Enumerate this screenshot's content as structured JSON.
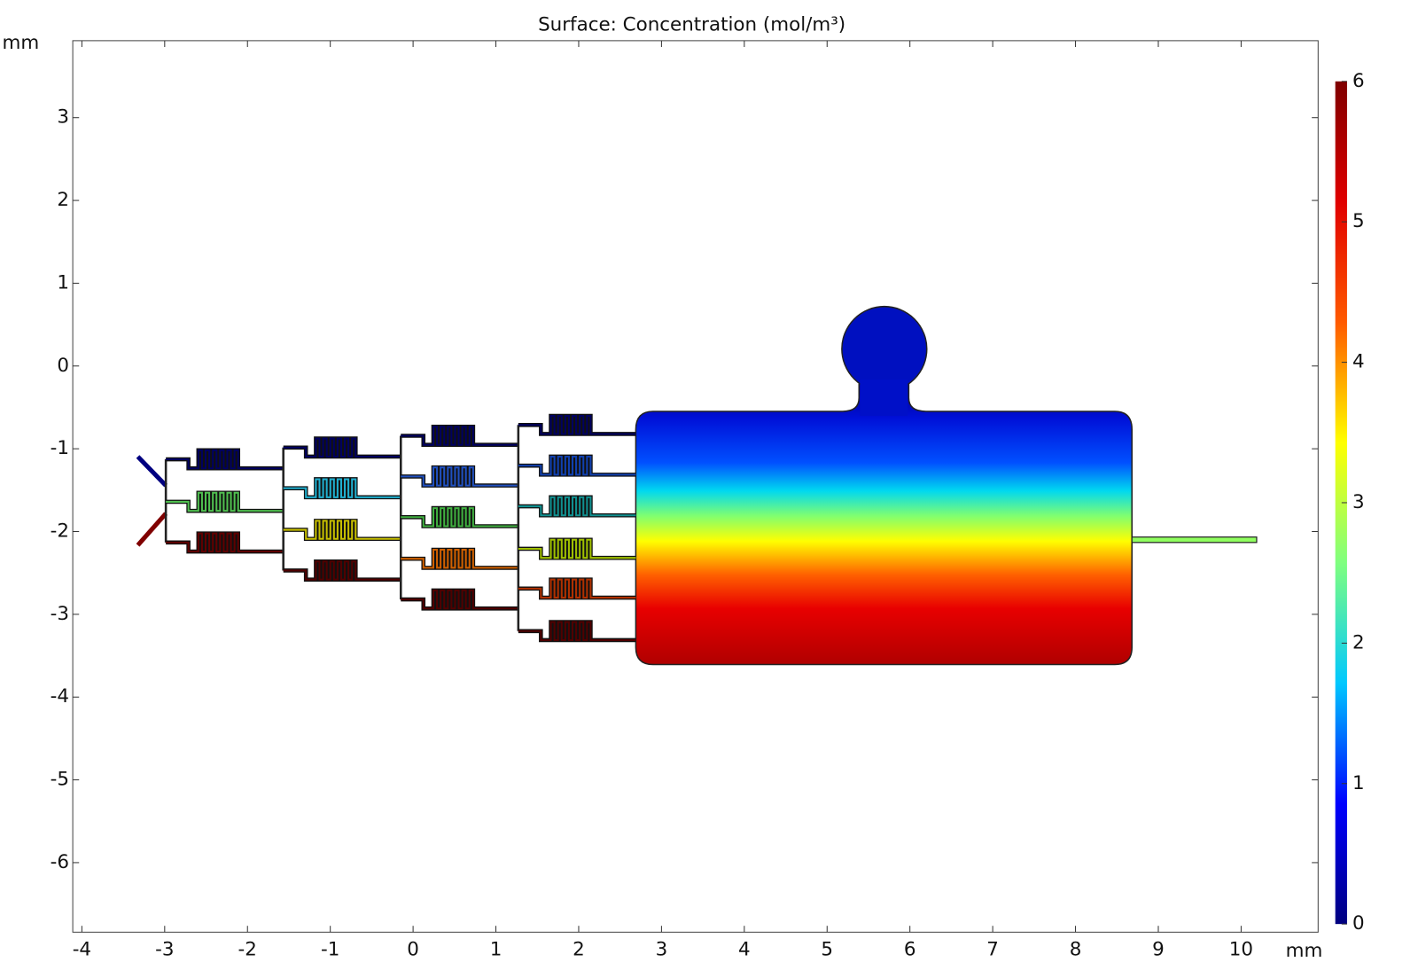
{
  "chart_data": {
    "type": "surface",
    "title": "Surface: Concentration (mol/m³)",
    "xlabel": "mm",
    "ylabel": "mm",
    "xlim": [
      -4.11,
      10.93
    ],
    "ylim": [
      -6.84,
      3.93
    ],
    "xticks": [
      -4,
      -3,
      -2,
      -1,
      0,
      1,
      2,
      3,
      4,
      5,
      6,
      7,
      8,
      9,
      10
    ],
    "yticks": [
      -6,
      -5,
      -4,
      -3,
      -2,
      -1,
      0,
      1,
      2,
      3
    ],
    "colorbar": {
      "lim": [
        0,
        6
      ],
      "ticks": [
        0,
        1,
        2,
        3,
        4,
        5,
        6
      ],
      "colors": [
        "#00007f",
        "#0000ff",
        "#00c8ff",
        "#7fff7f",
        "#ffff00",
        "#ff5a00",
        "#e00000",
        "#7f0000"
      ]
    }
  }
}
